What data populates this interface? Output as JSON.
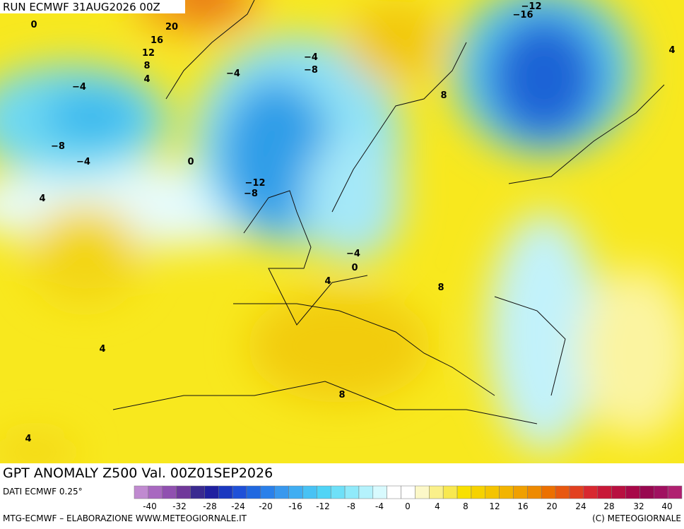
{
  "header": {
    "run": "RUN ECMWF 31AUG2026 00Z"
  },
  "footer": {
    "title": "GPT ANOMALY Z500 Val. 00Z01SEP2026",
    "source": "DATI ECMWF 0.25°",
    "credit": "MTG-ECMWF – ELABORAZIONE WWW.METEOGIORNALE.IT",
    "copyright": "(C) METEOGIORNALE"
  },
  "colorbar": {
    "labels": [
      -40,
      -32,
      -28,
      -24,
      -20,
      -16,
      -12,
      -8,
      -4,
      0,
      4,
      8,
      12,
      16,
      20,
      24,
      28,
      32,
      40
    ]
  },
  "map": {
    "labels": [
      "0",
      "20",
      "16",
      "12",
      "8",
      "4",
      "−4",
      "−8",
      "−4",
      "0",
      "−4",
      "−4",
      "−8",
      "−12",
      "−8",
      "8",
      "−12",
      "−16",
      "4",
      "4",
      "−4",
      "0",
      "4",
      "8",
      "4",
      "8",
      "4"
    ]
  }
}
